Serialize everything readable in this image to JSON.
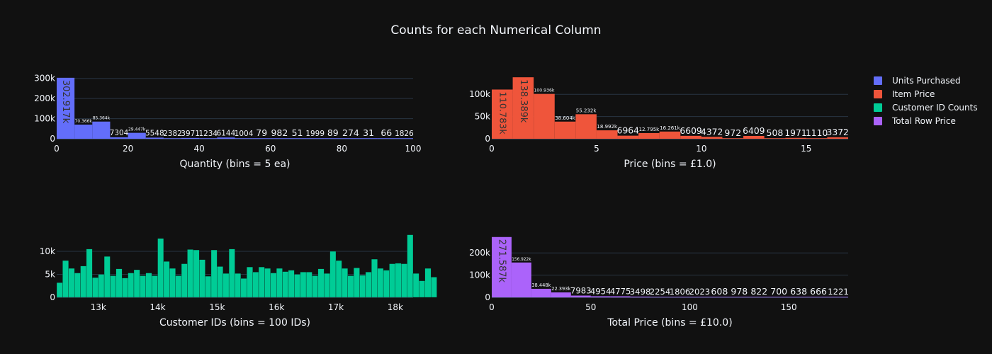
{
  "title": "Counts for each Numerical Column",
  "legend": [
    {
      "label": "Units Purchased",
      "color": "#636efa"
    },
    {
      "label": "Item Price",
      "color": "#ef553b"
    },
    {
      "label": "Customer ID Counts",
      "color": "#00cc96"
    },
    {
      "label": "Total Row Price",
      "color": "#ab63fa"
    }
  ],
  "chart_data": [
    {
      "type": "bar",
      "name": "Units Purchased",
      "color": "#636efa",
      "xlabel": "Quantity (bins = 5 ea)",
      "xlim": [
        0,
        100
      ],
      "ylim": [
        0,
        320000
      ],
      "xticks": [
        0,
        20,
        40,
        60,
        80,
        100
      ],
      "yticks": [
        0,
        100000,
        200000,
        300000
      ],
      "ytick_labels": [
        "0",
        "100k",
        "200k",
        "300k"
      ],
      "bin_width": 5,
      "bins": [
        {
          "x0": 0,
          "value": 302917,
          "label": "302.917k"
        },
        {
          "x0": 5,
          "value": 70366,
          "label": "70.366k"
        },
        {
          "x0": 10,
          "value": 85364,
          "label": "85.364k"
        },
        {
          "x0": 15,
          "value": 7304,
          "label": "7304"
        },
        {
          "x0": 20,
          "value": 29447,
          "label": "29.447k"
        },
        {
          "x0": 25,
          "value": 5548,
          "label": "5548"
        },
        {
          "x0": 30,
          "value": 2382,
          "label": "2382"
        },
        {
          "x0": 35,
          "value": 3971,
          "label": "3971"
        },
        {
          "x0": 40,
          "value": 1234,
          "label": "1234"
        },
        {
          "x0": 45,
          "value": 6144,
          "label": "6144"
        },
        {
          "x0": 50,
          "value": 1004,
          "label": "1004"
        },
        {
          "x0": 55,
          "value": 79,
          "label": "79"
        },
        {
          "x0": 60,
          "value": 982,
          "label": "982"
        },
        {
          "x0": 65,
          "value": 51,
          "label": "51"
        },
        {
          "x0": 70,
          "value": 1999,
          "label": "1999"
        },
        {
          "x0": 75,
          "value": 89,
          "label": "89"
        },
        {
          "x0": 80,
          "value": 274,
          "label": "274"
        },
        {
          "x0": 85,
          "value": 31,
          "label": "31"
        },
        {
          "x0": 90,
          "value": 66,
          "label": "66"
        },
        {
          "x0": 95,
          "value": 1826,
          "label": "1826"
        }
      ]
    },
    {
      "type": "bar",
      "name": "Item Price",
      "color": "#ef553b",
      "xlabel": "Price (bins =  £1.0)",
      "xlim": [
        0,
        17
      ],
      "ylim": [
        0,
        145000
      ],
      "xticks": [
        0,
        5,
        10,
        15
      ],
      "yticks": [
        0,
        50000,
        100000
      ],
      "ytick_labels": [
        "0",
        "50k",
        "100k"
      ],
      "bin_width": 1,
      "bins": [
        {
          "x0": 0,
          "value": 110783,
          "label": "110.783k"
        },
        {
          "x0": 1,
          "value": 138389,
          "label": "138.389k"
        },
        {
          "x0": 2,
          "value": 100936,
          "label": "100.936k"
        },
        {
          "x0": 3,
          "value": 38604,
          "label": "38.604k"
        },
        {
          "x0": 4,
          "value": 55232,
          "label": "55.232k"
        },
        {
          "x0": 5,
          "value": 18992,
          "label": "18.992k"
        },
        {
          "x0": 6,
          "value": 6964,
          "label": "6964"
        },
        {
          "x0": 7,
          "value": 12795,
          "label": "12.795k"
        },
        {
          "x0": 8,
          "value": 16261,
          "label": "16.261k"
        },
        {
          "x0": 9,
          "value": 6609,
          "label": "6609"
        },
        {
          "x0": 10,
          "value": 4372,
          "label": "4372"
        },
        {
          "x0": 11,
          "value": 972,
          "label": "972"
        },
        {
          "x0": 12,
          "value": 6409,
          "label": "6409"
        },
        {
          "x0": 13,
          "value": 508,
          "label": "508"
        },
        {
          "x0": 14,
          "value": 1971,
          "label": "1971"
        },
        {
          "x0": 15,
          "value": 1110,
          "label": "1110"
        },
        {
          "x0": 16,
          "value": 3372,
          "label": "3372"
        }
      ]
    },
    {
      "type": "bar",
      "name": "Customer ID Counts",
      "color": "#00cc96",
      "xlabel": "Customer IDs (bins = 100 IDs)",
      "xlim": [
        12300,
        18300
      ],
      "ylim": [
        0,
        14000
      ],
      "xticks": [
        13000,
        14000,
        15000,
        16000,
        17000,
        18000
      ],
      "xtick_labels": [
        "13k",
        "14k",
        "15k",
        "16k",
        "17k",
        "18k"
      ],
      "yticks": [
        0,
        5000,
        10000
      ],
      "ytick_labels": [
        "0",
        "5k",
        "10k"
      ],
      "bin_width": 100,
      "bins_x0": 12300,
      "values": [
        3200,
        8000,
        6300,
        5300,
        6800,
        10500,
        4300,
        5000,
        8900,
        4700,
        6200,
        4200,
        5300,
        6000,
        4700,
        5300,
        4700,
        12800,
        7800,
        6300,
        4700,
        7300,
        10400,
        10300,
        8200,
        4600,
        10300,
        6700,
        5200,
        10500,
        5200,
        4100,
        6600,
        5500,
        6600,
        6300,
        5300,
        6300,
        5600,
        5900,
        5000,
        5500,
        5500,
        4700,
        6200,
        5200,
        10000,
        8000,
        6300,
        4700,
        6400,
        4800,
        5500,
        8300,
        6300,
        5900,
        7300,
        7400,
        7300,
        13600,
        5200,
        3600,
        6300,
        4400
      ]
    },
    {
      "type": "bar",
      "name": "Total Row Price",
      "color": "#ab63fa",
      "xlabel": "Total Price (bins =  £10.0)",
      "xlim": [
        0,
        180
      ],
      "ylim": [
        0,
        290000
      ],
      "xticks": [
        0,
        50,
        100,
        150
      ],
      "yticks": [
        0,
        100000,
        200000
      ],
      "ytick_labels": [
        "0",
        "100k",
        "200k"
      ],
      "bin_width": 10,
      "bins": [
        {
          "x0": 0,
          "value": 271587,
          "label": "271.587k"
        },
        {
          "x0": 10,
          "value": 156922,
          "label": "156.922k"
        },
        {
          "x0": 20,
          "value": 38448,
          "label": "38.448k"
        },
        {
          "x0": 30,
          "value": 22393,
          "label": "22.393k"
        },
        {
          "x0": 40,
          "value": 7983,
          "label": "7983"
        },
        {
          "x0": 50,
          "value": 4954,
          "label": "4954"
        },
        {
          "x0": 60,
          "value": 4775,
          "label": "4775"
        },
        {
          "x0": 70,
          "value": 3498,
          "label": "3498"
        },
        {
          "x0": 80,
          "value": 2254,
          "label": "2254"
        },
        {
          "x0": 90,
          "value": 1806,
          "label": "1806"
        },
        {
          "x0": 100,
          "value": 2023,
          "label": "2023"
        },
        {
          "x0": 110,
          "value": 608,
          "label": "608"
        },
        {
          "x0": 120,
          "value": 978,
          "label": "978"
        },
        {
          "x0": 130,
          "value": 822,
          "label": "822"
        },
        {
          "x0": 140,
          "value": 700,
          "label": "700"
        },
        {
          "x0": 150,
          "value": 638,
          "label": "638"
        },
        {
          "x0": 160,
          "value": 666,
          "label": "666"
        },
        {
          "x0": 170,
          "value": 1221,
          "label": "1221"
        }
      ]
    }
  ]
}
